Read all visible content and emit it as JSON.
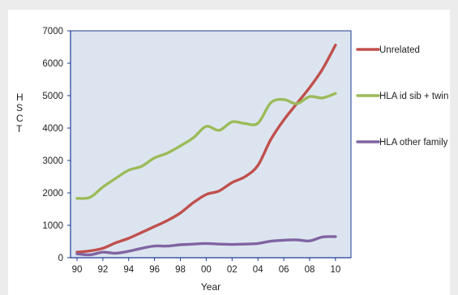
{
  "chart_data": {
    "type": "line",
    "title": "",
    "xlabel": "Year",
    "ylabel": "HSCT",
    "x": [
      90,
      91,
      92,
      93,
      94,
      95,
      96,
      97,
      98,
      99,
      100,
      101,
      102,
      103,
      104,
      105,
      106,
      107,
      108,
      109,
      110
    ],
    "x_tick_values": [
      90,
      92,
      94,
      96,
      98,
      100,
      102,
      104,
      106,
      108,
      110
    ],
    "x_tick_labels": [
      "90",
      "92",
      "94",
      "96",
      "98",
      "00",
      "02",
      "04",
      "06",
      "08",
      "10"
    ],
    "xlim": [
      89.5,
      111.2
    ],
    "ylim": [
      0,
      7000
    ],
    "y_ticks": [
      0,
      1000,
      2000,
      3000,
      4000,
      5000,
      6000,
      7000
    ],
    "grid": false,
    "legend_position": "right",
    "plot_background": "#dce5ef",
    "series": [
      {
        "name": "Unrelated",
        "color": "#c0504d",
        "values": [
          170,
          210,
          290,
          460,
          600,
          780,
          960,
          1150,
          1380,
          1700,
          1950,
          2060,
          2320,
          2500,
          2850,
          3650,
          4250,
          4750,
          5250,
          5820,
          6560
        ]
      },
      {
        "name": "HLA id sib + twin",
        "color": "#9bbb59",
        "values": [
          1830,
          1860,
          2180,
          2450,
          2700,
          2820,
          3080,
          3230,
          3450,
          3700,
          4050,
          3930,
          4190,
          4140,
          4150,
          4780,
          4880,
          4750,
          4970,
          4930,
          5070
        ]
      },
      {
        "name": "HLA other family",
        "color": "#8064a2",
        "values": [
          120,
          90,
          170,
          140,
          200,
          290,
          360,
          360,
          400,
          420,
          440,
          420,
          410,
          420,
          440,
          510,
          540,
          550,
          520,
          640,
          650
        ]
      }
    ]
  }
}
